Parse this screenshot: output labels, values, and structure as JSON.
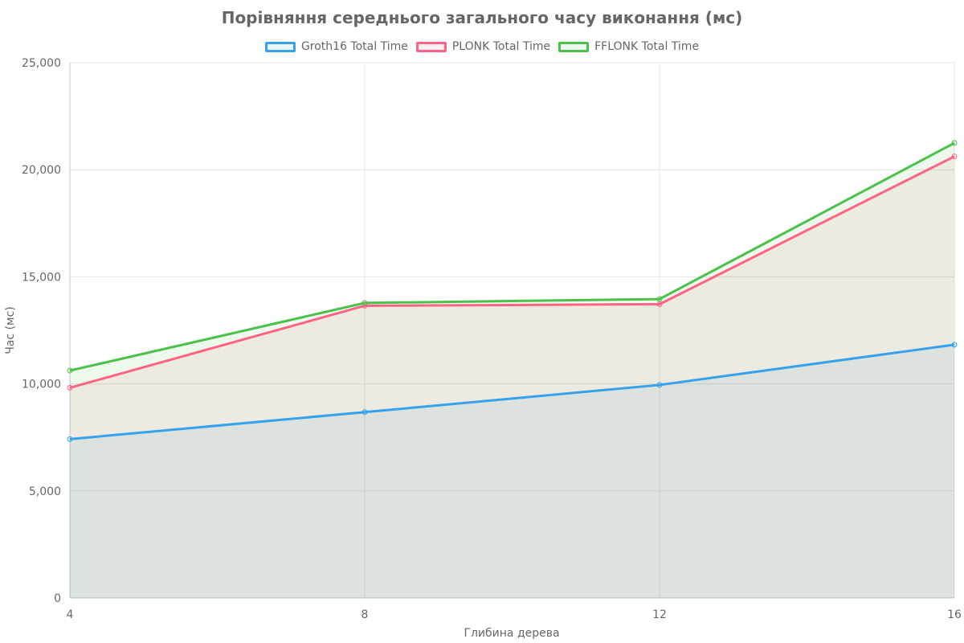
{
  "chart_data": {
    "type": "area",
    "title": "Порівняння середнього загального часу виконання (мс)",
    "xlabel": "Глибина дерева",
    "ylabel": "Час (мс)",
    "x": [
      4,
      8,
      12,
      16
    ],
    "ylim": [
      0,
      25000
    ],
    "y_ticks": [
      "0",
      "5,000",
      "10,000",
      "15,000",
      "20,000",
      "25,000"
    ],
    "x_ticks": [
      "4",
      "8",
      "12",
      "16"
    ],
    "grid": true,
    "legend_position": "top-center",
    "series": [
      {
        "name": "Groth16 Total Time",
        "values": [
          7420,
          8680,
          9950,
          11830
        ],
        "color": "#36A2EB"
      },
      {
        "name": "PLONK Total Time",
        "values": [
          9820,
          13650,
          13720,
          20620
        ],
        "color": "#FF6384"
      },
      {
        "name": "FFLONK Total Time",
        "values": [
          10620,
          13780,
          13960,
          21250
        ],
        "color": "#4BC04B"
      }
    ]
  }
}
